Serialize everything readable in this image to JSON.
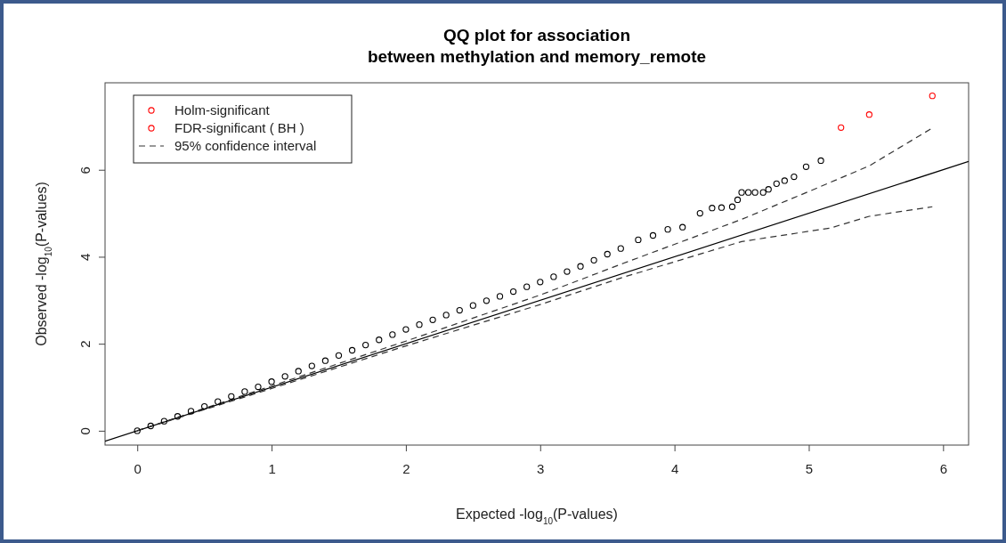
{
  "chart_data": {
    "type": "scatter",
    "title": "QQ plot for association\nbetween methylation and memory_remote",
    "xlabel": "Expected -log$_{10}$(P-values)",
    "ylabel": "Observed -log$_{10}$(P-values)",
    "xlim": [
      -0.24,
      6.19
    ],
    "ylim": [
      -0.33,
      8.0
    ],
    "xticks": [
      0,
      1,
      2,
      3,
      4,
      5,
      6
    ],
    "yticks": [
      0,
      2,
      4,
      6
    ],
    "legend": "top left",
    "series": [
      {
        "type": "scatter",
        "name": "Holm-significant",
        "color": "#ff0000",
        "marker": "circle",
        "x": [
          5.24,
          5.45,
          5.92
        ],
        "values": [
          6.97,
          7.27,
          7.7
        ]
      },
      {
        "type": "scatter",
        "name": "FDR-significant ( BH )",
        "color": "#ff0000",
        "marker": "circle"
      },
      {
        "type": "line",
        "name": "95% confidence interval",
        "color": "#333333",
        "marker": "none",
        "line_style": "dashed",
        "x": [
          0,
          1,
          2,
          3,
          3.62,
          4.5,
          5,
          5.45,
          5.92
        ],
        "values": [
          0,
          1.03,
          2.06,
          3.12,
          3.85,
          4.86,
          5.5,
          6.09,
          6.96
        ]
      },
      {
        "type": "line",
        "color": "#000000",
        "marker": "none",
        "line_style": "solid",
        "x": [
          -0.24,
          6.19
        ],
        "values": [
          -0.24,
          6.19
        ]
      },
      {
        "type": "line",
        "color": "#333333",
        "marker": "none",
        "line_style": "dashed",
        "x": [
          0,
          1,
          2,
          3,
          3.62,
          4.5,
          5.16,
          5.45,
          5.92
        ],
        "values": [
          0,
          0.97,
          1.95,
          2.9,
          3.53,
          4.35,
          4.66,
          4.93,
          5.15
        ]
      },
      {
        "type": "scatter",
        "color": "#000000",
        "marker": "circle",
        "x": [
          0,
          0.1,
          0.2,
          0.3,
          0.4,
          0.5,
          0.6,
          0.7,
          0.8,
          0.9,
          1.0,
          1.1,
          1.2,
          1.3,
          1.4,
          1.5,
          1.6,
          1.7,
          1.8,
          1.9,
          2.0,
          2.1,
          2.2,
          2.3,
          2.4,
          2.5,
          2.6,
          2.7,
          2.8,
          2.9,
          3.0,
          3.1,
          3.2,
          3.3,
          3.4,
          3.5,
          3.6,
          3.73,
          3.84,
          3.95,
          4.06,
          4.19,
          4.28,
          4.35,
          4.43,
          4.47,
          4.5,
          4.55,
          4.6,
          4.66,
          4.7,
          4.76,
          4.82,
          4.89,
          4.98,
          5.09
        ],
        "values": [
          0,
          0.11,
          0.22,
          0.33,
          0.45,
          0.56,
          0.67,
          0.79,
          0.9,
          1.01,
          1.13,
          1.25,
          1.37,
          1.49,
          1.61,
          1.73,
          1.85,
          1.97,
          2.09,
          2.21,
          2.33,
          2.44,
          2.55,
          2.66,
          2.77,
          2.88,
          2.99,
          3.09,
          3.2,
          3.31,
          3.42,
          3.54,
          3.66,
          3.78,
          3.92,
          4.06,
          4.19,
          4.39,
          4.49,
          4.63,
          4.68,
          5.0,
          5.12,
          5.13,
          5.15,
          5.31,
          5.48,
          5.48,
          5.48,
          5.48,
          5.55,
          5.68,
          5.75,
          5.84,
          6.07,
          6.21
        ]
      }
    ]
  }
}
